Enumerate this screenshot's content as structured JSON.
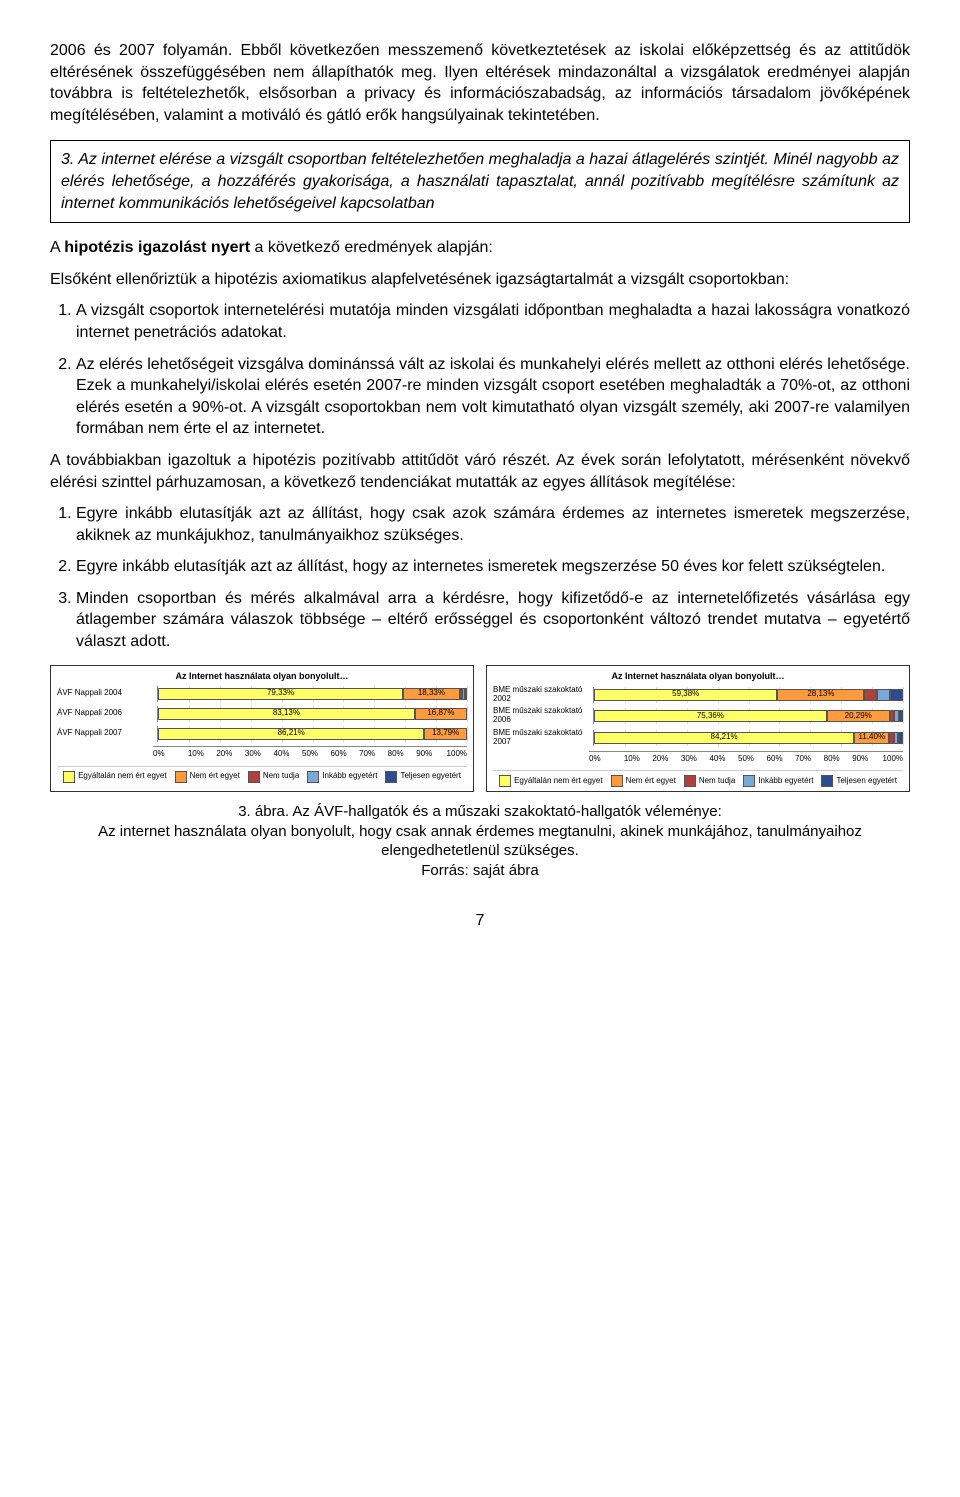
{
  "para1": "2006 és 2007 folyamán. Ebből következően messzemenő következtetések az iskolai előképzettség és az attitűdök eltérésének összefüggésében nem állapíthatók meg. Ilyen eltérések mindazonáltal a vizsgálatok eredményei alapján továbbra is feltételezhetők, elsősorban a privacy és információszabadság, az információs társadalom jövőképének megítélésében, valamint a motiváló és gátló erők hangsúlyainak tekintetében.",
  "hypothesis": "3. Az internet elérése a vizsgált csoportban feltételezhetően meghaladja a hazai átlagelérés szintjét. Minél nagyobb az elérés lehetősége, a hozzáférés gyakorisága, a használati tapasztalat, annál pozitívabb megítélésre számítunk az internet kommunikációs lehetőségeivel kapcsolatban",
  "conf_line": " a következő eredmények alapján:",
  "conf_bold": "hipotézis igazolást nyert",
  "para2": "Elsőként ellenőriztük a hipotézis axiomatikus alapfelvetésének igazságtartalmát a vizsgált csoportokban:",
  "list1": {
    "a": "A vizsgált csoportok internetelérési mutatója minden vizsgálati időpontban meghaladta a hazai lakosságra vonatkozó internet penetrációs adatokat.",
    "b": "Az elérés lehetőségeit vizsgálva dominánssá vált az iskolai és munkahelyi elérés mellett az otthoni elérés lehetősége. Ezek a munkahelyi/iskolai elérés esetén 2007-re minden vizsgált csoport esetében meghaladták a 70%-ot, az otthoni elérés esetén a 90%-ot. A vizsgált csoportokban nem volt kimutatható olyan vizsgált személy, aki 2007-re valamilyen formában nem érte el az internetet."
  },
  "para3": "A továbbiakban igazoltuk a hipotézis pozitívabb attitűdöt váró részét. Az évek során lefolytatott, mérésenként növekvő elérési szinttel párhuzamosan, a következő tendenciákat mutatták az egyes állítások megítélése:",
  "list2": {
    "a": "Egyre inkább elutasítják azt az állítást, hogy csak azok számára érdemes az internetes ismeretek megszerzése, akiknek az munkájukhoz, tanulmányaikhoz szükséges.",
    "b": "Egyre inkább elutasítják azt az állítást, hogy az internetes ismeretek megszerzése 50 éves kor felett szükségtelen.",
    "c": "Minden csoportban és mérés alkalmával arra a kérdésre, hogy kifizetődő-e az internetelőfizetés vásárlása egy átlagember számára válaszok többsége – eltérő erősséggel és csoportonként változó trendet mutatva – egyetértő választ adott."
  },
  "chart_common": {
    "title": "Az Internet használata olyan bonyolult…",
    "xticks": [
      "0%",
      "10%",
      "20%",
      "30%",
      "40%",
      "50%",
      "60%",
      "70%",
      "80%",
      "90%",
      "100%"
    ],
    "legend": [
      "Egyáltalán nem ért egyet",
      "Nem ért egyet",
      "Nem tudja",
      "Inkább egyetért",
      "Teljesen egyetért"
    ],
    "colors": [
      "#ffff66",
      "#ff9a3d",
      "#b04040",
      "#7aa8d8",
      "#2a4d8f"
    ]
  },
  "chart_left": {
    "rows": [
      {
        "cat": "ÁVF Nappali 2004",
        "vals": [
          79.33,
          18.33
        ],
        "labels": [
          "79,33%",
          "18,33%"
        ],
        "rest": 2.34
      },
      {
        "cat": "ÁVF Nappali 2006",
        "vals": [
          83.13,
          16.87
        ],
        "labels": [
          "83,13%",
          "16,87%"
        ],
        "rest": 0
      },
      {
        "cat": "ÁVF Nappali 2007",
        "vals": [
          86.21,
          13.79
        ],
        "labels": [
          "86,21%",
          "13,79%"
        ],
        "rest": 0
      }
    ]
  },
  "chart_right": {
    "rows": [
      {
        "cat": "BME műszaki szakoktató 2002",
        "vals": [
          59.38,
          28.13
        ],
        "labels": [
          "59,38%",
          "28,13%"
        ],
        "rest": 12.49
      },
      {
        "cat": "BME műszaki szakoktató 2006",
        "vals": [
          75.36,
          20.29
        ],
        "labels": [
          "75,36%",
          "20,29%"
        ],
        "rest": 4.35
      },
      {
        "cat": "BME műszaki szakoktató 2007",
        "vals": [
          84.21,
          11.4
        ],
        "labels": [
          "84,21%",
          "11,40%"
        ],
        "rest": 4.39
      }
    ]
  },
  "figcap1": "3. ábra. Az ÁVF-hallgatók és a műszaki szakoktató-hallgatók véleménye:",
  "figcap2": "Az internet használata olyan bonyolult, hogy csak annak érdemes megtanulni, akinek munkájához, tanulmányaihoz elengedhetetlenül szükséges.",
  "figcap3": "Forrás: saját ábra",
  "page": "7"
}
